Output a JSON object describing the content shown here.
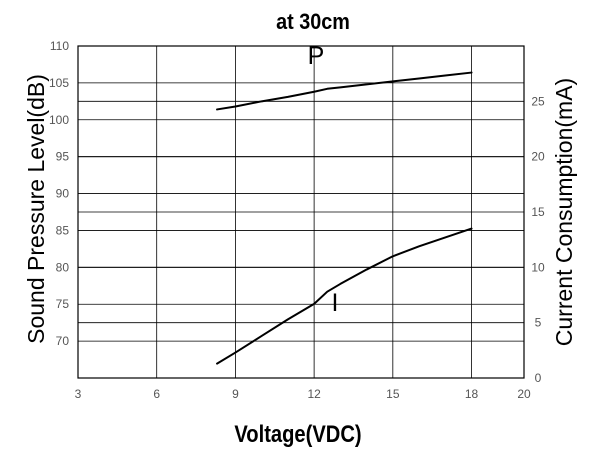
{
  "chart_data": {
    "type": "line",
    "title": "at 30cm",
    "xlabel": "Voltage(VDC)",
    "ylabel_left": "Sound Pressure Level(dB)",
    "ylabel_right": "Current Consumption(mA)",
    "x_ticks": [
      "3",
      "6",
      "9",
      "12",
      "15",
      "18",
      "20"
    ],
    "x_tick_values": [
      3,
      6,
      9,
      12,
      15,
      18,
      20
    ],
    "y_left_ticks": [
      "110",
      "105",
      "100",
      "95",
      "90",
      "85",
      "80",
      "75",
      "70"
    ],
    "y_left_tick_values": [
      110,
      105,
      100,
      95,
      90,
      85,
      80,
      75,
      70
    ],
    "y_right_ticks": [
      "25",
      "20",
      "15",
      "10",
      "5",
      "0"
    ],
    "y_right_tick_values": [
      25,
      20,
      15,
      10,
      5,
      0
    ],
    "grid": true,
    "series": [
      {
        "name": "P",
        "axis": "left",
        "color": "#000000",
        "x": [
          8.3,
          9,
          10,
          11,
          12,
          12.5,
          13,
          14,
          15,
          16,
          17,
          18
        ],
        "y": [
          101.4,
          101.8,
          102.5,
          103.1,
          103.8,
          104.2,
          104.4,
          104.8,
          105.2,
          105.6,
          106,
          106.4
        ]
      },
      {
        "name": "I",
        "axis": "right",
        "color": "#000000",
        "x": [
          8.3,
          9,
          10,
          11,
          12,
          12.5,
          13,
          14,
          15,
          16,
          17,
          18
        ],
        "y": [
          1.3,
          2.3,
          3.8,
          5.3,
          6.7,
          7.8,
          8.5,
          9.8,
          11,
          11.9,
          12.7,
          13.5
        ]
      }
    ]
  }
}
